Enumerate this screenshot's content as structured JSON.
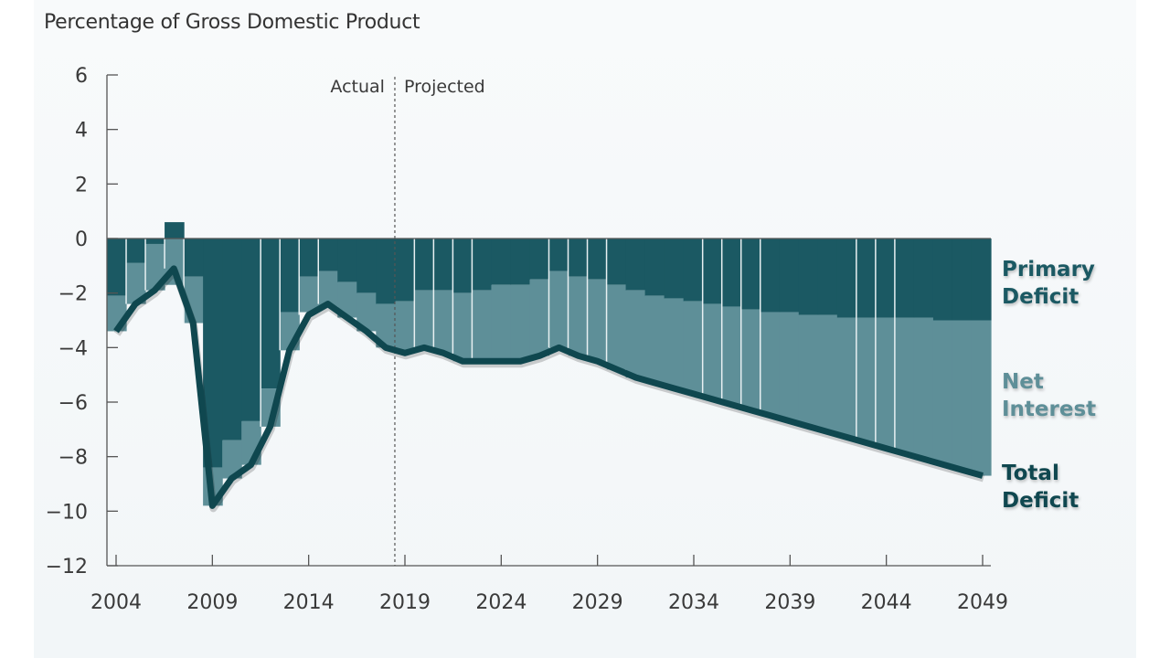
{
  "chart_data": {
    "type": "bar",
    "subtype": "stacked-bar-with-line",
    "title": "Percentage of Gross Domestic Product",
    "xlabel": "",
    "ylabel": "Percentage of Gross Domestic Product",
    "ylim": [
      -12,
      6
    ],
    "xlim": [
      2004,
      2049
    ],
    "yticks": [
      6,
      4,
      2,
      0,
      -2,
      -4,
      -6,
      -8,
      -10,
      -12
    ],
    "ytick_labels": [
      "6",
      "4",
      "2",
      "0",
      "−2",
      "−4",
      "−6",
      "−8",
      "−10",
      "−12"
    ],
    "xticks": [
      2004,
      2009,
      2014,
      2019,
      2024,
      2029,
      2034,
      2039,
      2044,
      2049
    ],
    "xtick_labels": [
      "2004",
      "2009",
      "2014",
      "2019",
      "2024",
      "2029",
      "2034",
      "2039",
      "2044",
      "2049"
    ],
    "divider": {
      "x": 2018.5,
      "left_label": "Actual",
      "right_label": "Projected"
    },
    "grid": false,
    "legend_placement": "right",
    "colors": {
      "primary": "#1b5963",
      "interest": "#5e8f98",
      "total": "#0f474f",
      "divider": "#555555"
    },
    "x": [
      2004,
      2005,
      2006,
      2007,
      2008,
      2009,
      2010,
      2011,
      2012,
      2013,
      2014,
      2015,
      2016,
      2017,
      2018,
      2019,
      2020,
      2021,
      2022,
      2023,
      2024,
      2025,
      2026,
      2027,
      2028,
      2029,
      2030,
      2031,
      2032,
      2033,
      2034,
      2035,
      2036,
      2037,
      2038,
      2039,
      2040,
      2041,
      2042,
      2043,
      2044,
      2045,
      2046,
      2047,
      2048,
      2049
    ],
    "series": [
      {
        "name": "Primary Deficit",
        "type": "bar",
        "values": [
          -2.1,
          -0.9,
          -0.2,
          0.6,
          -1.4,
          -8.4,
          -7.4,
          -6.7,
          -5.5,
          -2.7,
          -1.4,
          -1.2,
          -1.6,
          -2.0,
          -2.4,
          -2.3,
          -1.9,
          -1.9,
          -2.0,
          -1.9,
          -1.7,
          -1.7,
          -1.5,
          -1.2,
          -1.4,
          -1.5,
          -1.7,
          -1.9,
          -2.1,
          -2.2,
          -2.3,
          -2.4,
          -2.5,
          -2.6,
          -2.7,
          -2.7,
          -2.8,
          -2.8,
          -2.9,
          -2.9,
          -2.9,
          -2.9,
          -2.9,
          -3.0,
          -3.0,
          -3.0
        ]
      },
      {
        "name": "Net Interest",
        "type": "bar",
        "values": [
          -1.3,
          -1.5,
          -1.7,
          -1.7,
          -1.7,
          -1.4,
          -1.4,
          -1.6,
          -1.4,
          -1.4,
          -1.3,
          -1.3,
          -1.3,
          -1.4,
          -1.6,
          -1.9,
          -2.1,
          -2.3,
          -2.5,
          -2.6,
          -2.8,
          -2.8,
          -2.8,
          -2.8,
          -2.9,
          -3.0,
          -3.1,
          -3.2,
          -3.2,
          -3.3,
          -3.4,
          -3.5,
          -3.6,
          -3.7,
          -3.8,
          -4.0,
          -4.1,
          -4.3,
          -4.4,
          -4.6,
          -4.8,
          -5.0,
          -5.2,
          -5.3,
          -5.5,
          -5.7
        ]
      },
      {
        "name": "Total Deficit",
        "type": "line",
        "values": [
          -3.4,
          -2.4,
          -1.9,
          -1.1,
          -3.1,
          -9.8,
          -8.8,
          -8.3,
          -6.9,
          -4.1,
          -2.8,
          -2.4,
          -2.9,
          -3.4,
          -4.0,
          -4.2,
          -4.0,
          -4.2,
          -4.5,
          -4.5,
          -4.5,
          -4.5,
          -4.3,
          -4.0,
          -4.3,
          -4.5,
          -4.8,
          -5.1,
          -5.3,
          -5.5,
          -5.7,
          -5.9,
          -6.1,
          -6.3,
          -6.5,
          -6.7,
          -6.9,
          -7.1,
          -7.3,
          -7.5,
          -7.7,
          -7.9,
          -8.1,
          -8.3,
          -8.5,
          -8.7
        ]
      }
    ],
    "legend": [
      {
        "line1": "Primary",
        "line2": "Deficit",
        "color": "#1b5963"
      },
      {
        "line1": "Net",
        "line2": "Interest",
        "color": "#5e8f98"
      },
      {
        "line1": "Total",
        "line2": "Deficit",
        "color": "#0f474f"
      }
    ]
  }
}
